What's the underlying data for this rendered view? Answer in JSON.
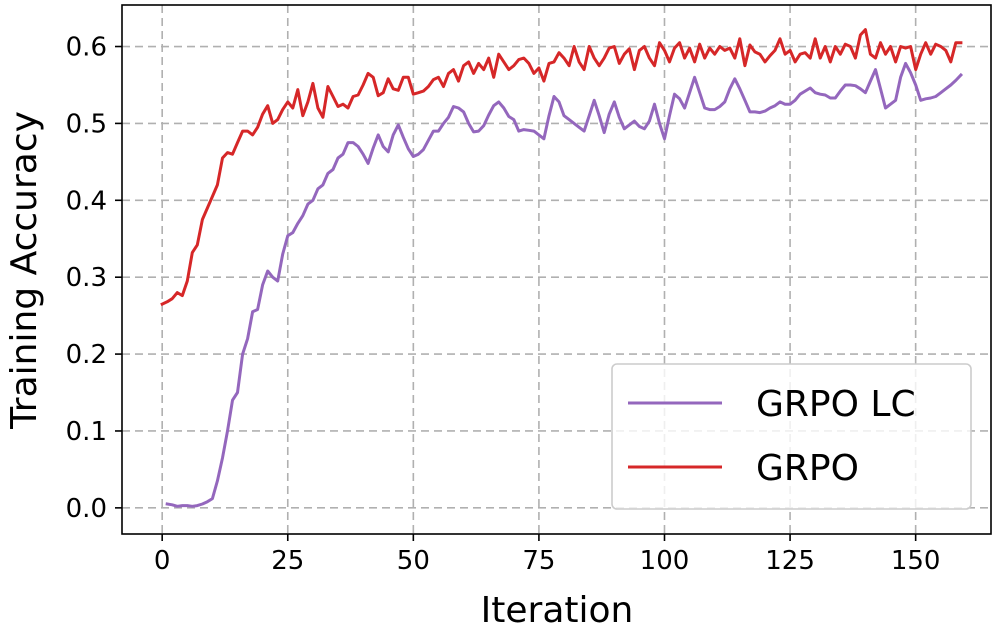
{
  "chart_data": {
    "type": "line",
    "xlabel": "Iteration",
    "ylabel": "Training Accuracy",
    "xlim": [
      -8,
      165
    ],
    "ylim": [
      -0.034,
      0.654
    ],
    "xticks": [
      0,
      25,
      50,
      75,
      100,
      125,
      150
    ],
    "yticks": [
      0.0,
      0.1,
      0.2,
      0.3,
      0.4,
      0.5,
      0.6
    ],
    "ytick_labels": [
      "0.0",
      "0.1",
      "0.2",
      "0.3",
      "0.4",
      "0.5",
      "0.6"
    ],
    "grid": true,
    "legend_position": "lower-right",
    "series": [
      {
        "name": "GRPO LC",
        "color": "#9467bd",
        "points": [
          [
            1,
            0.005
          ],
          [
            2,
            0.004
          ],
          [
            3,
            0.002
          ],
          [
            4,
            0.003
          ],
          [
            5,
            0.003
          ],
          [
            6,
            0.002
          ],
          [
            7,
            0.003
          ],
          [
            8,
            0.005
          ],
          [
            9,
            0.008
          ],
          [
            10,
            0.012
          ],
          [
            11,
            0.035
          ],
          [
            12,
            0.065
          ],
          [
            13,
            0.1
          ],
          [
            14,
            0.14
          ],
          [
            15,
            0.15
          ],
          [
            16,
            0.2
          ],
          [
            17,
            0.22
          ],
          [
            18,
            0.255
          ],
          [
            19,
            0.258
          ],
          [
            20,
            0.29
          ],
          [
            21,
            0.308
          ],
          [
            22,
            0.3
          ],
          [
            23,
            0.295
          ],
          [
            24,
            0.33
          ],
          [
            25,
            0.354
          ],
          [
            26,
            0.358
          ],
          [
            27,
            0.37
          ],
          [
            28,
            0.38
          ],
          [
            29,
            0.395
          ],
          [
            30,
            0.4
          ],
          [
            31,
            0.415
          ],
          [
            32,
            0.42
          ],
          [
            33,
            0.435
          ],
          [
            34,
            0.44
          ],
          [
            35,
            0.455
          ],
          [
            36,
            0.46
          ],
          [
            37,
            0.475
          ],
          [
            38,
            0.475
          ],
          [
            39,
            0.47
          ],
          [
            40,
            0.46
          ],
          [
            41,
            0.448
          ],
          [
            42,
            0.468
          ],
          [
            43,
            0.485
          ],
          [
            44,
            0.47
          ],
          [
            45,
            0.463
          ],
          [
            46,
            0.485
          ],
          [
            47,
            0.498
          ],
          [
            48,
            0.482
          ],
          [
            49,
            0.467
          ],
          [
            50,
            0.457
          ],
          [
            51,
            0.46
          ],
          [
            52,
            0.466
          ],
          [
            53,
            0.478
          ],
          [
            54,
            0.49
          ],
          [
            55,
            0.49
          ],
          [
            56,
            0.5
          ],
          [
            57,
            0.508
          ],
          [
            58,
            0.522
          ],
          [
            59,
            0.52
          ],
          [
            60,
            0.515
          ],
          [
            61,
            0.5
          ],
          [
            62,
            0.489
          ],
          [
            63,
            0.49
          ],
          [
            64,
            0.497
          ],
          [
            65,
            0.511
          ],
          [
            66,
            0.523
          ],
          [
            67,
            0.528
          ],
          [
            68,
            0.52
          ],
          [
            69,
            0.509
          ],
          [
            70,
            0.505
          ],
          [
            71,
            0.49
          ],
          [
            72,
            0.492
          ],
          [
            73,
            0.491
          ],
          [
            74,
            0.49
          ],
          [
            75,
            0.485
          ],
          [
            76,
            0.48
          ],
          [
            77,
            0.51
          ],
          [
            78,
            0.535
          ],
          [
            79,
            0.528
          ],
          [
            80,
            0.51
          ],
          [
            81,
            0.505
          ],
          [
            82,
            0.5
          ],
          [
            83,
            0.495
          ],
          [
            84,
            0.49
          ],
          [
            85,
            0.51
          ],
          [
            86,
            0.53
          ],
          [
            87,
            0.51
          ],
          [
            88,
            0.488
          ],
          [
            89,
            0.512
          ],
          [
            90,
            0.528
          ],
          [
            91,
            0.508
          ],
          [
            92,
            0.493
          ],
          [
            93,
            0.498
          ],
          [
            94,
            0.503
          ],
          [
            95,
            0.496
          ],
          [
            96,
            0.493
          ],
          [
            97,
            0.503
          ],
          [
            98,
            0.525
          ],
          [
            99,
            0.5
          ],
          [
            100,
            0.48
          ],
          [
            101,
            0.51
          ],
          [
            102,
            0.538
          ],
          [
            103,
            0.532
          ],
          [
            104,
            0.52
          ],
          [
            105,
            0.54
          ],
          [
            106,
            0.56
          ],
          [
            107,
            0.54
          ],
          [
            108,
            0.52
          ],
          [
            109,
            0.518
          ],
          [
            110,
            0.518
          ],
          [
            111,
            0.522
          ],
          [
            112,
            0.528
          ],
          [
            113,
            0.545
          ],
          [
            114,
            0.558
          ],
          [
            115,
            0.545
          ],
          [
            116,
            0.53
          ],
          [
            117,
            0.515
          ],
          [
            118,
            0.515
          ],
          [
            119,
            0.514
          ],
          [
            120,
            0.516
          ],
          [
            121,
            0.52
          ],
          [
            122,
            0.523
          ],
          [
            123,
            0.528
          ],
          [
            124,
            0.525
          ],
          [
            125,
            0.525
          ],
          [
            126,
            0.53
          ],
          [
            127,
            0.538
          ],
          [
            128,
            0.542
          ],
          [
            129,
            0.546
          ],
          [
            130,
            0.54
          ],
          [
            131,
            0.538
          ],
          [
            132,
            0.537
          ],
          [
            133,
            0.533
          ],
          [
            134,
            0.533
          ],
          [
            135,
            0.542
          ],
          [
            136,
            0.55
          ],
          [
            137,
            0.55
          ],
          [
            138,
            0.549
          ],
          [
            139,
            0.545
          ],
          [
            140,
            0.54
          ],
          [
            141,
            0.555
          ],
          [
            142,
            0.57
          ],
          [
            143,
            0.545
          ],
          [
            144,
            0.52
          ],
          [
            145,
            0.525
          ],
          [
            146,
            0.53
          ],
          [
            147,
            0.56
          ],
          [
            148,
            0.578
          ],
          [
            149,
            0.566
          ],
          [
            150,
            0.55
          ],
          [
            151,
            0.53
          ],
          [
            152,
            0.532
          ],
          [
            153,
            0.533
          ],
          [
            154,
            0.535
          ],
          [
            155,
            0.54
          ],
          [
            156,
            0.545
          ],
          [
            157,
            0.55
          ],
          [
            158,
            0.556
          ],
          [
            159,
            0.563
          ]
        ]
      },
      {
        "name": "GRPO",
        "color": "#d62728",
        "points": [
          [
            0,
            0.265
          ],
          [
            1,
            0.268
          ],
          [
            2,
            0.272
          ],
          [
            3,
            0.28
          ],
          [
            4,
            0.276
          ],
          [
            5,
            0.295
          ],
          [
            6,
            0.332
          ],
          [
            7,
            0.342
          ],
          [
            8,
            0.375
          ],
          [
            9,
            0.39
          ],
          [
            10,
            0.405
          ],
          [
            11,
            0.42
          ],
          [
            12,
            0.455
          ],
          [
            13,
            0.462
          ],
          [
            14,
            0.46
          ],
          [
            15,
            0.475
          ],
          [
            16,
            0.49
          ],
          [
            17,
            0.49
          ],
          [
            18,
            0.485
          ],
          [
            19,
            0.495
          ],
          [
            20,
            0.512
          ],
          [
            21,
            0.523
          ],
          [
            22,
            0.5
          ],
          [
            23,
            0.505
          ],
          [
            24,
            0.518
          ],
          [
            25,
            0.528
          ],
          [
            26,
            0.52
          ],
          [
            27,
            0.544
          ],
          [
            28,
            0.51
          ],
          [
            29,
            0.528
          ],
          [
            30,
            0.552
          ],
          [
            31,
            0.52
          ],
          [
            32,
            0.508
          ],
          [
            33,
            0.548
          ],
          [
            34,
            0.535
          ],
          [
            35,
            0.522
          ],
          [
            36,
            0.525
          ],
          [
            37,
            0.52
          ],
          [
            38,
            0.535
          ],
          [
            39,
            0.537
          ],
          [
            40,
            0.55
          ],
          [
            41,
            0.565
          ],
          [
            42,
            0.56
          ],
          [
            43,
            0.536
          ],
          [
            44,
            0.54
          ],
          [
            45,
            0.558
          ],
          [
            46,
            0.545
          ],
          [
            47,
            0.543
          ],
          [
            48,
            0.56
          ],
          [
            49,
            0.56
          ],
          [
            50,
            0.538
          ],
          [
            51,
            0.54
          ],
          [
            52,
            0.542
          ],
          [
            53,
            0.548
          ],
          [
            54,
            0.557
          ],
          [
            55,
            0.56
          ],
          [
            56,
            0.548
          ],
          [
            57,
            0.565
          ],
          [
            58,
            0.57
          ],
          [
            59,
            0.555
          ],
          [
            60,
            0.575
          ],
          [
            61,
            0.58
          ],
          [
            62,
            0.565
          ],
          [
            63,
            0.578
          ],
          [
            64,
            0.57
          ],
          [
            65,
            0.585
          ],
          [
            66,
            0.56
          ],
          [
            67,
            0.59
          ],
          [
            68,
            0.58
          ],
          [
            69,
            0.57
          ],
          [
            70,
            0.575
          ],
          [
            71,
            0.583
          ],
          [
            72,
            0.585
          ],
          [
            73,
            0.578
          ],
          [
            74,
            0.565
          ],
          [
            75,
            0.572
          ],
          [
            76,
            0.555
          ],
          [
            77,
            0.578
          ],
          [
            78,
            0.58
          ],
          [
            79,
            0.592
          ],
          [
            80,
            0.585
          ],
          [
            81,
            0.575
          ],
          [
            82,
            0.6
          ],
          [
            83,
            0.58
          ],
          [
            84,
            0.57
          ],
          [
            85,
            0.6
          ],
          [
            86,
            0.585
          ],
          [
            87,
            0.575
          ],
          [
            88,
            0.585
          ],
          [
            89,
            0.598
          ],
          [
            90,
            0.6
          ],
          [
            91,
            0.578
          ],
          [
            92,
            0.59
          ],
          [
            93,
            0.597
          ],
          [
            94,
            0.57
          ],
          [
            95,
            0.595
          ],
          [
            96,
            0.6
          ],
          [
            97,
            0.585
          ],
          [
            98,
            0.575
          ],
          [
            99,
            0.605
          ],
          [
            100,
            0.595
          ],
          [
            101,
            0.58
          ],
          [
            102,
            0.598
          ],
          [
            103,
            0.605
          ],
          [
            104,
            0.585
          ],
          [
            105,
            0.598
          ],
          [
            106,
            0.58
          ],
          [
            107,
            0.603
          ],
          [
            108,
            0.585
          ],
          [
            109,
            0.598
          ],
          [
            110,
            0.59
          ],
          [
            111,
            0.6
          ],
          [
            112,
            0.595
          ],
          [
            113,
            0.598
          ],
          [
            114,
            0.585
          ],
          [
            115,
            0.61
          ],
          [
            116,
            0.575
          ],
          [
            117,
            0.602
          ],
          [
            118,
            0.593
          ],
          [
            119,
            0.59
          ],
          [
            120,
            0.58
          ],
          [
            121,
            0.588
          ],
          [
            122,
            0.595
          ],
          [
            123,
            0.61
          ],
          [
            124,
            0.59
          ],
          [
            125,
            0.595
          ],
          [
            126,
            0.58
          ],
          [
            127,
            0.59
          ],
          [
            128,
            0.592
          ],
          [
            129,
            0.585
          ],
          [
            130,
            0.61
          ],
          [
            131,
            0.585
          ],
          [
            132,
            0.6
          ],
          [
            133,
            0.58
          ],
          [
            134,
            0.6
          ],
          [
            135,
            0.59
          ],
          [
            136,
            0.603
          ],
          [
            137,
            0.6
          ],
          [
            138,
            0.585
          ],
          [
            139,
            0.615
          ],
          [
            140,
            0.622
          ],
          [
            141,
            0.59
          ],
          [
            142,
            0.585
          ],
          [
            143,
            0.605
          ],
          [
            144,
            0.59
          ],
          [
            145,
            0.6
          ],
          [
            146,
            0.58
          ],
          [
            147,
            0.6
          ],
          [
            148,
            0.598
          ],
          [
            149,
            0.6
          ],
          [
            150,
            0.57
          ],
          [
            151,
            0.59
          ],
          [
            152,
            0.605
          ],
          [
            153,
            0.59
          ],
          [
            154,
            0.603
          ],
          [
            155,
            0.6
          ],
          [
            156,
            0.595
          ],
          [
            157,
            0.58
          ],
          [
            158,
            0.605
          ],
          [
            159,
            0.605
          ]
        ]
      }
    ]
  }
}
